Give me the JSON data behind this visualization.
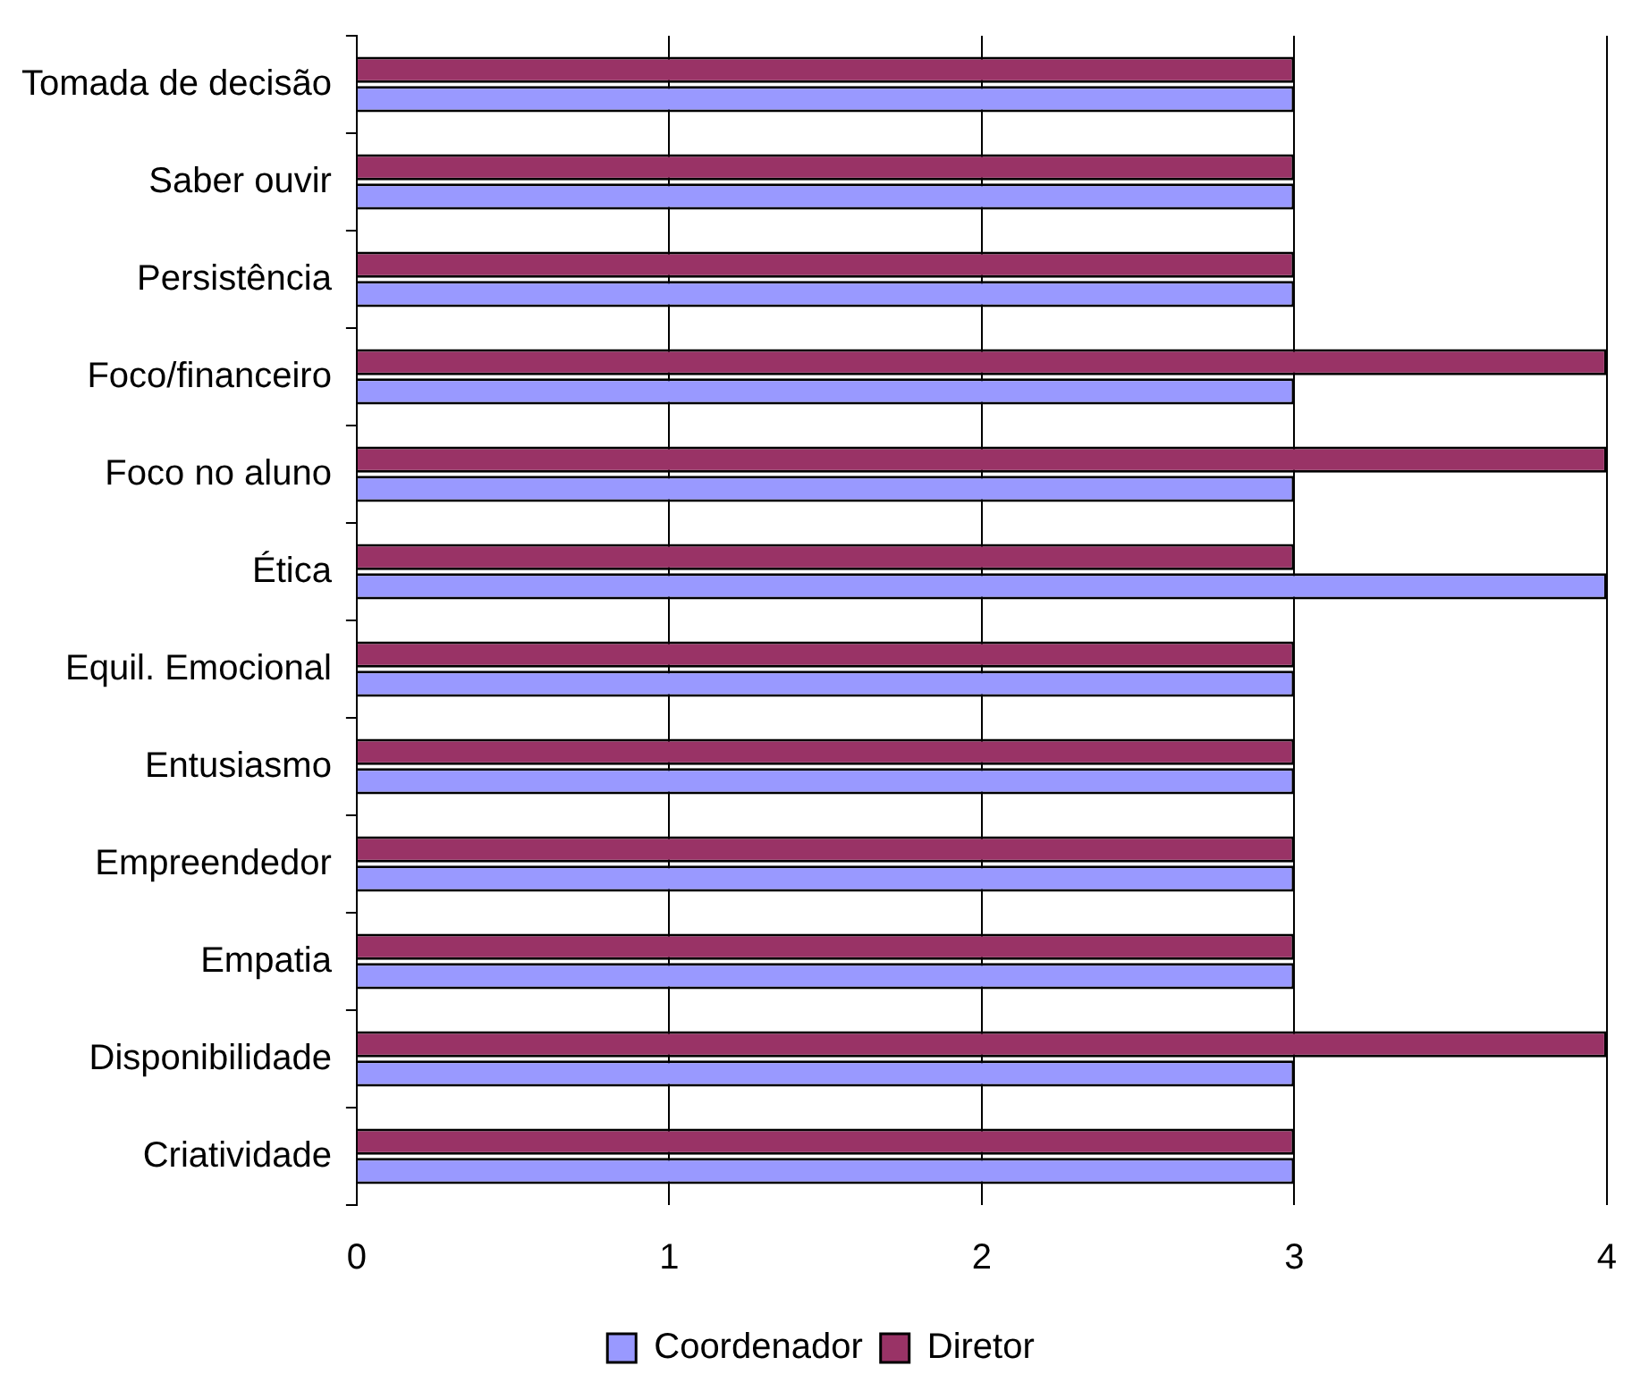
{
  "chart_data": {
    "type": "bar",
    "orientation": "horizontal",
    "categories": [
      "Tomada de decisão",
      "Saber ouvir",
      "Persistência",
      "Foco/financeiro",
      "Foco no aluno",
      "Ética",
      "Equil. Emocional",
      "Entusiasmo",
      "Empreendedor",
      "Empatia",
      "Disponibilidade",
      "Criatividade"
    ],
    "series": [
      {
        "name": "Coordenador",
        "color": "#9999ff",
        "values": [
          3,
          3,
          3,
          3,
          3,
          4,
          3,
          3,
          3,
          3,
          3,
          3
        ]
      },
      {
        "name": "Diretor",
        "color": "#993366",
        "values": [
          3,
          3,
          3,
          4,
          4,
          3,
          3,
          3,
          3,
          3,
          4,
          3
        ]
      }
    ],
    "xlim": [
      0,
      4
    ],
    "xticks": [
      0,
      1,
      2,
      3,
      4
    ],
    "grid": "x",
    "legend": "bottom"
  }
}
